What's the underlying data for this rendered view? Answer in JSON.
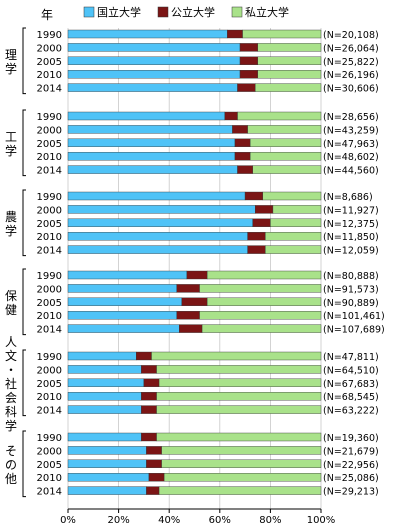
{
  "header_label": "年",
  "colors": {
    "national": "#4fc3f7",
    "public": "#7b1515",
    "private": "#a9e28a"
  },
  "chart_data": {
    "type": "bar",
    "stacked": "percent",
    "orientation": "horizontal",
    "legend": [
      {
        "name": "国立大学",
        "color": "#4fc3f7"
      },
      {
        "name": "公立大学",
        "color": "#7b1515"
      },
      {
        "name": "私立大学",
        "color": "#a9e28a"
      }
    ],
    "xlim": [
      0,
      100
    ],
    "x_ticks": [
      "0%",
      "20%",
      "40%",
      "60%",
      "80%",
      "100%"
    ],
    "years": [
      "1990",
      "2000",
      "2005",
      "2010",
      "2014"
    ],
    "groups": [
      {
        "label": "理学",
        "rows": [
          {
            "year": "1990",
            "national": 63,
            "public": 6,
            "private": 31,
            "n": "(N=20,108)"
          },
          {
            "year": "2000",
            "national": 68,
            "public": 7,
            "private": 25,
            "n": "(N=26,064)"
          },
          {
            "year": "2005",
            "national": 68,
            "public": 7,
            "private": 25,
            "n": "(N=25,822)"
          },
          {
            "year": "2010",
            "national": 68,
            "public": 7,
            "private": 25,
            "n": "(N=26,196)"
          },
          {
            "year": "2014",
            "national": 67,
            "public": 7,
            "private": 26,
            "n": "(N=30,606)"
          }
        ]
      },
      {
        "label": "工学",
        "rows": [
          {
            "year": "1990",
            "national": 62,
            "public": 5,
            "private": 33,
            "n": "(N=28,656)"
          },
          {
            "year": "2000",
            "national": 65,
            "public": 6,
            "private": 29,
            "n": "(N=43,259)"
          },
          {
            "year": "2005",
            "national": 66,
            "public": 6,
            "private": 28,
            "n": "(N=47,963)"
          },
          {
            "year": "2010",
            "national": 66,
            "public": 6,
            "private": 28,
            "n": "(N=48,602)"
          },
          {
            "year": "2014",
            "national": 67,
            "public": 6,
            "private": 27,
            "n": "(N=44,560)"
          }
        ]
      },
      {
        "label": "農学",
        "rows": [
          {
            "year": "1990",
            "national": 70,
            "public": 7,
            "private": 23,
            "n": "(N=8,686)"
          },
          {
            "year": "2000",
            "national": 74,
            "public": 7,
            "private": 19,
            "n": "(N=11,927)"
          },
          {
            "year": "2005",
            "national": 73,
            "public": 7,
            "private": 20,
            "n": "(N=12,375)"
          },
          {
            "year": "2010",
            "national": 71,
            "public": 7,
            "private": 22,
            "n": "(N=11,850)"
          },
          {
            "year": "2014",
            "national": 71,
            "public": 7,
            "private": 22,
            "n": "(N=12,059)"
          }
        ]
      },
      {
        "label": "保健",
        "rows": [
          {
            "year": "1990",
            "national": 47,
            "public": 8,
            "private": 45,
            "n": "(N=80,888)"
          },
          {
            "year": "2000",
            "national": 43,
            "public": 9,
            "private": 48,
            "n": "(N=91,573)"
          },
          {
            "year": "2005",
            "national": 45,
            "public": 10,
            "private": 45,
            "n": "(N=90,889)"
          },
          {
            "year": "2010",
            "national": 43,
            "public": 9,
            "private": 48,
            "n": "(N=101,461)"
          },
          {
            "year": "2014",
            "national": 44,
            "public": 9,
            "private": 47,
            "n": "(N=107,689)"
          }
        ]
      },
      {
        "label": "人文・社会科学",
        "rows": [
          {
            "year": "1990",
            "national": 27,
            "public": 6,
            "private": 67,
            "n": "(N=47,811)"
          },
          {
            "year": "2000",
            "national": 29,
            "public": 6,
            "private": 65,
            "n": "(N=64,510)"
          },
          {
            "year": "2005",
            "national": 30,
            "public": 6,
            "private": 64,
            "n": "(N=67,683)"
          },
          {
            "year": "2010",
            "national": 29,
            "public": 6,
            "private": 65,
            "n": "(N=68,545)"
          },
          {
            "year": "2014",
            "national": 29,
            "public": 6,
            "private": 65,
            "n": "(N=63,222)"
          }
        ]
      },
      {
        "label": "その他",
        "rows": [
          {
            "year": "1990",
            "national": 29,
            "public": 6,
            "private": 65,
            "n": "(N=19,360)"
          },
          {
            "year": "2000",
            "national": 31,
            "public": 6,
            "private": 63,
            "n": "(N=21,679)"
          },
          {
            "year": "2005",
            "national": 31,
            "public": 6,
            "private": 63,
            "n": "(N=22,956)"
          },
          {
            "year": "2010",
            "national": 32,
            "public": 6,
            "private": 62,
            "n": "(N=25,086)"
          },
          {
            "year": "2014",
            "national": 31,
            "public": 5,
            "private": 64,
            "n": "(N=29,213)"
          }
        ]
      }
    ]
  }
}
